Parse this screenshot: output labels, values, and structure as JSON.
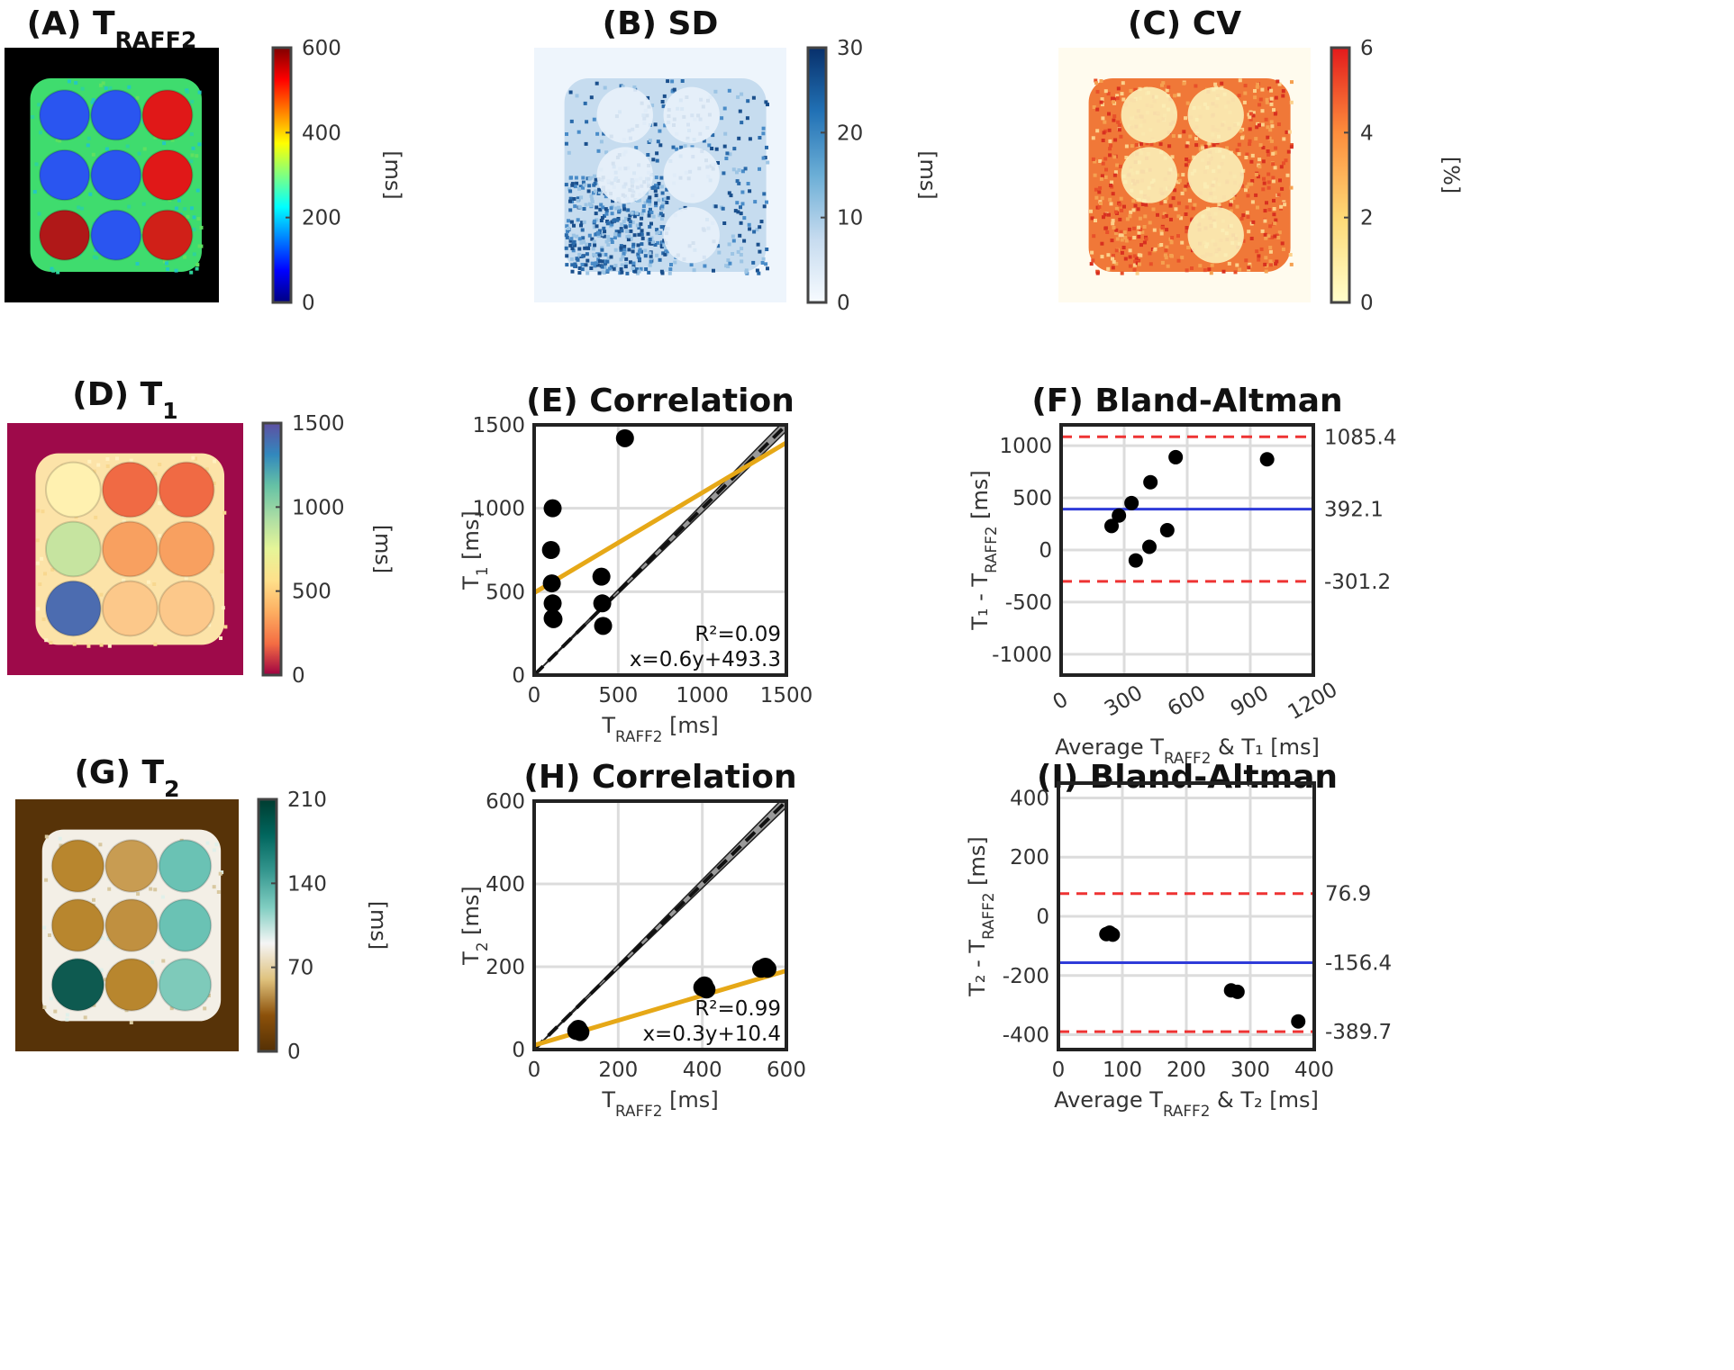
{
  "colors": {
    "jet": [
      "#000080",
      "#0000ff",
      "#0080ff",
      "#00ffff",
      "#80ff80",
      "#ffff00",
      "#ff8000",
      "#ff0000",
      "#800000"
    ],
    "blues": [
      "#f7fbff",
      "#c6dbef",
      "#6baed6",
      "#2171b5",
      "#08306b"
    ],
    "ylorrd": [
      "#ffffcc",
      "#fed976",
      "#fd8d3c",
      "#e31a1c"
    ],
    "spectral_r": [
      "#9e0142",
      "#f46d43",
      "#fdae61",
      "#fee08b",
      "#e6f598",
      "#abdda4",
      "#66c2a5",
      "#3288bd",
      "#5e4fa2"
    ],
    "brbg": [
      "#543005",
      "#8c510a",
      "#dfc27d",
      "#f5f5f5",
      "#80cdc1",
      "#35978f",
      "#01665e",
      "#003c30"
    ],
    "fit": "#e6a817",
    "mean": "#2f3bd9",
    "loa": "#ee3333",
    "point": "#000000"
  },
  "maps": [
    {
      "key": "A",
      "title": "(A) T",
      "title_sub": "RAFF2",
      "unit": "[ms]",
      "ticks": [
        "600",
        "400",
        "200",
        "0"
      ],
      "cmap": "jet",
      "bg": "#000000",
      "phantom": "#3fdc6e",
      "vials": [
        {
          "value": 110,
          "color": "#2a55f0"
        },
        {
          "value": 105,
          "color": "#2a55f0"
        },
        {
          "value": 555,
          "color": "#e01818"
        },
        {
          "value": 110,
          "color": "#2a55f0"
        },
        {
          "value": 105,
          "color": "#2a55f0"
        },
        {
          "value": 545,
          "color": "#e01818"
        },
        {
          "value": 540,
          "color": "#b01818"
        },
        {
          "value": 110,
          "color": "#2a55f0"
        },
        {
          "value": 550,
          "color": "#d02018"
        }
      ]
    },
    {
      "key": "B",
      "title": "(B) SD",
      "title_sub": "",
      "unit": "[ms]",
      "ticks": [
        "30",
        "20",
        "10",
        "0"
      ],
      "cmap": "blues",
      "bg": "#eef5fc",
      "phantom": "#c6dcef",
      "vials": []
    },
    {
      "key": "C",
      "title": "(C) CV",
      "title_sub": "",
      "unit": "[%]",
      "ticks": [
        "6",
        "4",
        "2",
        "0"
      ],
      "cmap": "ylorrd",
      "bg": "#fffbee",
      "phantom": "#f07838",
      "vials": []
    },
    {
      "key": "D",
      "title": "(D) T",
      "title_sub": "1",
      "unit": "[ms]",
      "ticks": [
        "1500",
        "1000",
        "500",
        "0"
      ],
      "cmap": "spectral_r",
      "bg": "#9e0a4a",
      "phantom": "#fce3a8",
      "vials": [
        {
          "value": 760,
          "color": "#fff1b0"
        },
        {
          "value": 420,
          "color": "#f06a44"
        },
        {
          "value": 430,
          "color": "#f06a44"
        },
        {
          "value": 1010,
          "color": "#c6e4a0"
        },
        {
          "value": 560,
          "color": "#f8a060"
        },
        {
          "value": 580,
          "color": "#f8a060"
        },
        {
          "value": 1420,
          "color": "#4c6cb0"
        },
        {
          "value": 600,
          "color": "#fcc88a"
        },
        {
          "value": 590,
          "color": "#fcc88a"
        }
      ]
    },
    {
      "key": "G",
      "title": "(G) T",
      "title_sub": "2",
      "unit": "[ms]",
      "ticks": [
        "210",
        "140",
        "70",
        "0"
      ],
      "cmap": "brbg",
      "bg": "#573308",
      "phantom": "#f3efe6",
      "vials": [
        {
          "value": 55,
          "color": "#b8862e"
        },
        {
          "value": 60,
          "color": "#c89c52"
        },
        {
          "value": 145,
          "color": "#6ac2b4"
        },
        {
          "value": 50,
          "color": "#b8862e"
        },
        {
          "value": 55,
          "color": "#c09040"
        },
        {
          "value": 150,
          "color": "#6ac2b4"
        },
        {
          "value": 205,
          "color": "#0e5a50"
        },
        {
          "value": 52,
          "color": "#b8862e"
        },
        {
          "value": 140,
          "color": "#7ecaba"
        }
      ]
    }
  ],
  "chart_data": [
    {
      "key": "E",
      "type": "scatter",
      "title": "(E) Correlation",
      "xlabel": "T",
      "xlabel_sub": "RAFF2",
      "xlabel_suffix": " [ms]",
      "ylabel": "T",
      "ylabel_sub": "1",
      "ylabel_suffix": " [ms]",
      "xlim": [
        0,
        1500
      ],
      "ylim": [
        0,
        1500
      ],
      "xticks": [
        0,
        500,
        1000,
        1500
      ],
      "yticks": [
        0,
        500,
        1000,
        1500
      ],
      "grid": true,
      "x": [
        100,
        105,
        110,
        110,
        110,
        115,
        400,
        405,
        410,
        540
      ],
      "y": [
        750,
        550,
        430,
        340,
        1000,
        335,
        590,
        430,
        295,
        1420
      ],
      "fit": {
        "slope": 0.6,
        "intercept": 493.3
      },
      "identity": true,
      "annotation": [
        "R²=0.09",
        "x=0.6y+493.3"
      ]
    },
    {
      "key": "F",
      "type": "scatter",
      "subtype": "bland-altman",
      "title": "(F) Bland-Altman",
      "xlabel": "Average T",
      "xlabel_sub": "RAFF2",
      "xlabel_suffix": " & T₁ [ms]",
      "ylabel": "T₁ - T",
      "ylabel_sub": "RAFF2",
      "ylabel_suffix": " [ms]",
      "xlim": [
        0,
        1200
      ],
      "ylim": [
        -1200,
        1200
      ],
      "xticks": [
        0,
        300,
        600,
        900,
        1200
      ],
      "yticks": [
        -1000,
        -500,
        0,
        500,
        1000
      ],
      "grid": true,
      "xtick_rotation": -30,
      "x": [
        240,
        275,
        335,
        355,
        425,
        420,
        505,
        545,
        980
      ],
      "y": [
        230,
        330,
        450,
        -100,
        650,
        30,
        190,
        890,
        870
      ],
      "mean": 392.1,
      "loa": [
        1085.4,
        -301.2
      ],
      "right_labels": [
        "1085.4",
        "392.1",
        "-301.2"
      ]
    },
    {
      "key": "H",
      "type": "scatter",
      "title": "(H) Correlation",
      "xlabel": "T",
      "xlabel_sub": "RAFF2",
      "xlabel_suffix": " [ms]",
      "ylabel": "T",
      "ylabel_sub": "2",
      "ylabel_suffix": " [ms]",
      "xlim": [
        0,
        600
      ],
      "ylim": [
        0,
        600
      ],
      "xticks": [
        0,
        200,
        400,
        600
      ],
      "yticks": [
        0,
        200,
        400,
        600
      ],
      "grid": true,
      "x": [
        100,
        105,
        110,
        400,
        405,
        410,
        540,
        550,
        555
      ],
      "y": [
        45,
        50,
        42,
        150,
        155,
        145,
        195,
        200,
        195
      ],
      "fit": {
        "slope": 0.3,
        "intercept": 10.4
      },
      "identity": true,
      "annotation": [
        "R²=0.99",
        "x=0.3y+10.4"
      ]
    },
    {
      "key": "I",
      "type": "scatter",
      "subtype": "bland-altman",
      "title": "(I) Bland-Altman",
      "xlabel": "Average T",
      "xlabel_sub": "RAFF2",
      "xlabel_suffix": " & T₂ [ms]",
      "ylabel": "T₂ - T",
      "ylabel_sub": "RAFF2",
      "ylabel_suffix": " [ms]",
      "xlim": [
        0,
        400
      ],
      "ylim": [
        -450,
        450
      ],
      "xticks": [
        0,
        100,
        200,
        300,
        400
      ],
      "yticks": [
        -400,
        -200,
        0,
        200,
        400
      ],
      "grid": true,
      "x": [
        75,
        80,
        85,
        270,
        280,
        375
      ],
      "y": [
        -60,
        -55,
        -62,
        -250,
        -255,
        -355
      ],
      "mean": -156.4,
      "loa": [
        76.9,
        -389.7
      ],
      "right_labels": [
        "76.9",
        "-156.4",
        "-389.7"
      ]
    }
  ]
}
